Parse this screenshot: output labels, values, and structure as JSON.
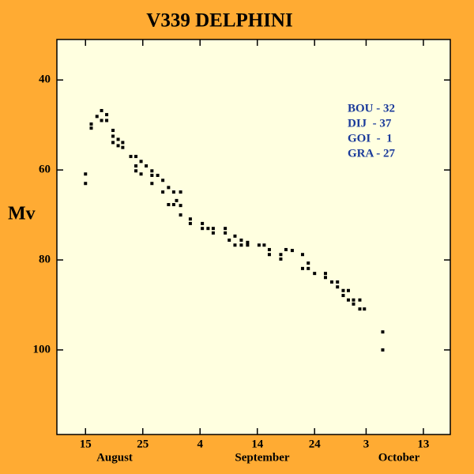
{
  "chart_data": {
    "type": "scatter",
    "title": "V339 DELPHINI",
    "y_label": "Mv",
    "x_group_labels": [
      "August",
      "September",
      "October"
    ],
    "annotations": [
      "BOU - 32",
      "DIJ  - 37",
      "GOI  -  1",
      "GRA - 27"
    ],
    "color": "#000000",
    "xlim": [
      10,
      78.7
    ],
    "ylim": [
      118.8,
      31
    ],
    "xticks": [
      15,
      25,
      {
        "value": 35,
        "label": "4"
      },
      {
        "value": 45,
        "label": "14"
      },
      {
        "value": 55,
        "label": "24"
      },
      {
        "value": 64,
        "label": "3"
      },
      {
        "value": 74,
        "label": "13"
      }
    ],
    "yticks": [
      40,
      60,
      80,
      100
    ],
    "x": [
      15,
      15,
      16,
      16,
      17,
      17.8,
      17.8,
      18.7,
      18.7,
      19.8,
      19.8,
      19.8,
      20.7,
      20.7,
      21.5,
      21.5,
      22.9,
      23.8,
      23.8,
      23.8,
      24.7,
      24.7,
      25.6,
      26.6,
      26.6,
      26.6,
      27.6,
      28.5,
      28.5,
      29.5,
      29.5,
      30.4,
      30.4,
      30.9,
      31.6,
      31.6,
      31.6,
      33.3,
      33.3,
      35.4,
      35.4,
      36.4,
      37.3,
      37.3,
      39.4,
      39.4,
      40.1,
      41.1,
      41.1,
      42.2,
      42.2,
      43.3,
      43.3,
      45.3,
      46.2,
      47.1,
      47.1,
      49.1,
      49.1,
      50,
      51.1,
      52.9,
      52.9,
      53.9,
      53.9,
      55,
      56.9,
      56.9,
      58,
      59,
      59,
      60,
      60,
      60.9,
      60.9,
      61.8,
      61.8,
      62.9,
      62.9,
      63.7,
      66.9,
      66.9
    ],
    "values": [
      60.9,
      63,
      49.8,
      50.7,
      48.1,
      46.8,
      49,
      47.7,
      49,
      51.2,
      52.5,
      53.9,
      53.2,
      54.6,
      53.9,
      55,
      57,
      57,
      59.1,
      60.2,
      58.1,
      60.9,
      59.1,
      60.2,
      61.2,
      63,
      61.2,
      62.3,
      64.9,
      63.9,
      67.7,
      64.9,
      67.7,
      66.8,
      64.9,
      67.9,
      70,
      70.9,
      71.9,
      71.9,
      73,
      73,
      73,
      74,
      73,
      74,
      75.6,
      74.7,
      76.7,
      75.6,
      76.7,
      76.1,
      76.7,
      76.7,
      76.7,
      77.7,
      78.8,
      78.8,
      79.8,
      77.7,
      77.9,
      78.8,
      81.9,
      80.7,
      81.9,
      83,
      83,
      83.9,
      84.9,
      84.9,
      86,
      86.8,
      87.9,
      86.8,
      88.9,
      88.9,
      89.8,
      88.9,
      90.9,
      90.9,
      96,
      100
    ]
  }
}
